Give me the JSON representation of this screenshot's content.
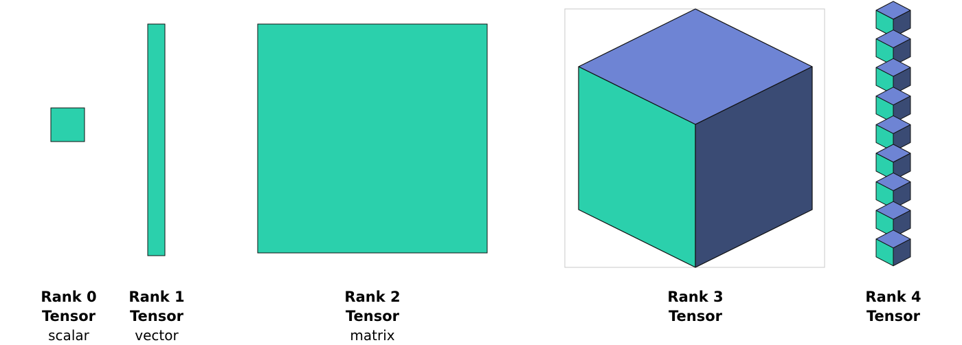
{
  "colors": {
    "teal": "#2bd0ac",
    "top": "#6e84d4",
    "side": "#3a4b74",
    "outline": "#111111",
    "frame": "#c8c8c8"
  },
  "tensors": [
    {
      "rank": "Rank 0",
      "kind": "Tensor",
      "sub": "scalar",
      "icon": "square-icon"
    },
    {
      "rank": "Rank 1",
      "kind": "Tensor",
      "sub": "vector",
      "icon": "bar-icon"
    },
    {
      "rank": "Rank 2",
      "kind": "Tensor",
      "sub": "matrix",
      "icon": "square-icon"
    },
    {
      "rank": "Rank 3",
      "kind": "Tensor",
      "sub": "",
      "icon": "cube-icon"
    },
    {
      "rank": "Rank 4",
      "kind": "Tensor",
      "sub": "",
      "icon": "cube-stack-icon"
    }
  ],
  "cube_stack_count": 9
}
